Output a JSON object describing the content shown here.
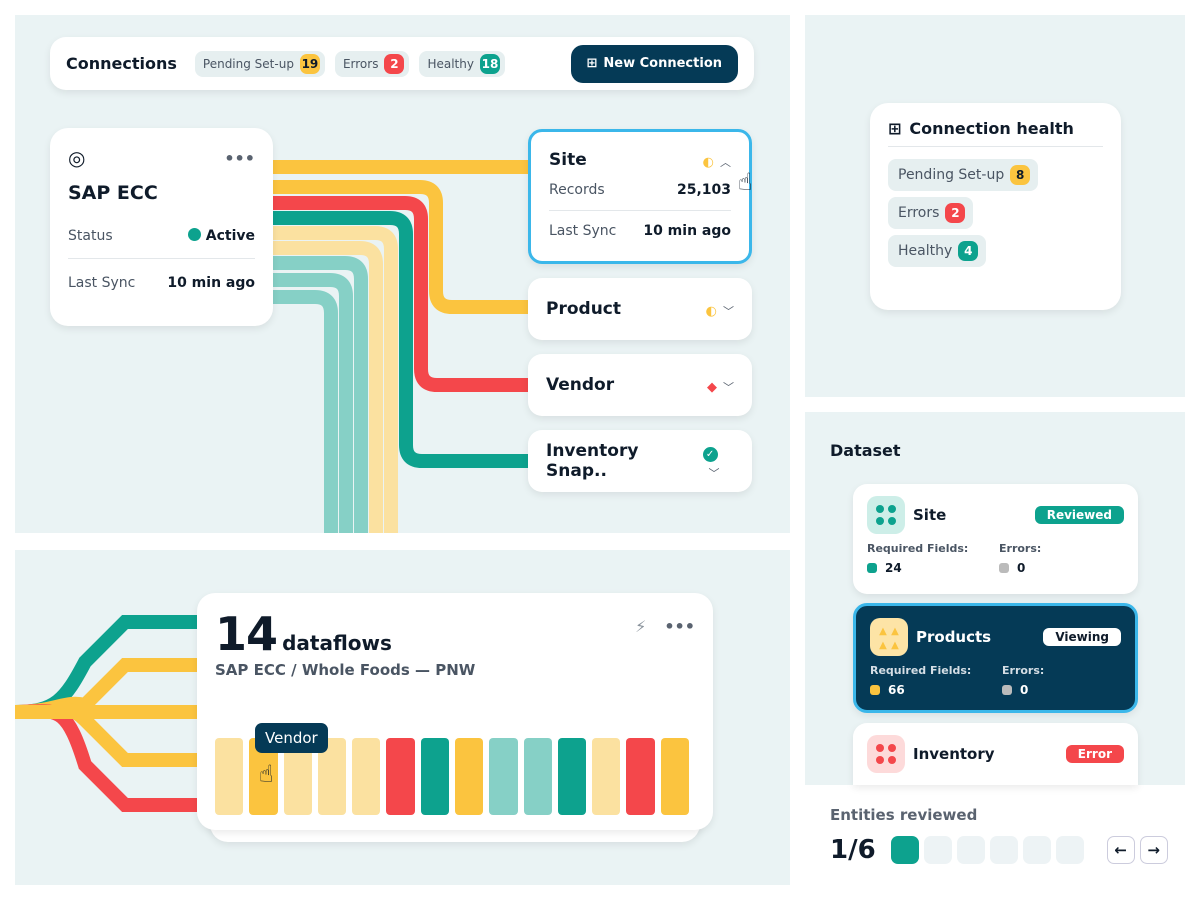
{
  "colors": {
    "yellow": "#fbc43f",
    "pale_yellow": "#fbe1a0",
    "red": "#f4474b",
    "teal": "#0da28e",
    "light_teal": "#86d0c6",
    "navy": "#053a56",
    "highlight": "#3bb7ea"
  },
  "header": {
    "title": "Connections",
    "pills": [
      {
        "label": "Pending Set-up",
        "count": "19"
      },
      {
        "label": "Errors",
        "count": "2"
      },
      {
        "label": "Healthy",
        "count": "18"
      }
    ],
    "new_connection": "New Connection"
  },
  "source": {
    "name": "SAP ECC",
    "status_label": "Status",
    "status": "Active",
    "sync_label": "Last Sync",
    "sync": "10 min ago"
  },
  "targets": [
    {
      "name": "Site",
      "records_label": "Records",
      "records": "25,103",
      "sync_label": "Last Sync",
      "sync": "10 min ago",
      "status": "pending",
      "expanded": true
    },
    {
      "name": "Product",
      "status": "pending"
    },
    {
      "name": "Vendor",
      "status": "error"
    },
    {
      "name": "Inventory Snap..",
      "status": "healthy"
    }
  ],
  "health": {
    "title": "Connection health",
    "items": [
      {
        "label": "Pending Set-up",
        "count": "8"
      },
      {
        "label": "Errors",
        "count": "2"
      },
      {
        "label": "Healthy",
        "count": "4"
      }
    ]
  },
  "dataflows": {
    "count": "14",
    "unit": "dataflows",
    "subtitle": "SAP ECC / Whole Foods — PNW",
    "tooltip": "Vendor",
    "bars": [
      "pale_yellow",
      "yellow",
      "pale_yellow",
      "pale_yellow",
      "pale_yellow",
      "red",
      "teal",
      "yellow",
      "light_teal",
      "light_teal",
      "teal",
      "pale_yellow",
      "red",
      "yellow"
    ]
  },
  "dataset": {
    "title": "Dataset",
    "items": [
      {
        "name": "Site",
        "tag": "Reviewed",
        "req_label": "Required Fields:",
        "req": "24",
        "err_label": "Errors:",
        "err": "0"
      },
      {
        "name": "Products",
        "tag": "Viewing",
        "req_label": "Required Fields:",
        "req": "66",
        "err_label": "Errors:",
        "err": "0"
      },
      {
        "name": "Inventory",
        "tag": "Error"
      }
    ]
  },
  "review": {
    "label": "Entities reviewed",
    "progress": "1/6",
    "current": 1,
    "total": 6
  }
}
